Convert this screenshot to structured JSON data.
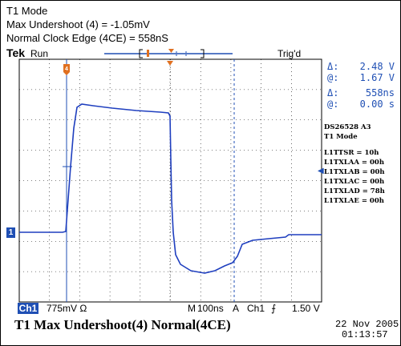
{
  "header": {
    "mode": "T1 Mode",
    "max_undershoot": "Max Undershoot (4) = -1.05mV",
    "clock_edge": "Normal Clock Edge (4CE) = 558nS"
  },
  "scope": {
    "brand": "Tek",
    "run_state": "Run",
    "trig_state": "Trig'd",
    "marker_label": "4",
    "channel_marker": "1"
  },
  "readouts": [
    {
      "label": "Δ:",
      "value": "2.48 V"
    },
    {
      "label": "@:",
      "value": "1.67 V"
    },
    {
      "label": "Δ:",
      "value": "558ns"
    },
    {
      "label": "@:",
      "value": "0.00 s"
    }
  ],
  "device": {
    "name": "DS26528  A3",
    "mode": "T1 Mode",
    "registers": [
      "L1TTSR = 10h",
      "L1TXLAA = 00h",
      "L1TXLAB = 00h",
      "L1TXLAC = 00h",
      "L1TXLAD = 78h",
      "L1TXLAE = 00h"
    ]
  },
  "status_bar": {
    "channel": "Ch1",
    "scale": "775mV Ω",
    "timebase_prefix": "M",
    "timebase": "100ns",
    "trigger_mode": "A",
    "trigger_channel": "Ch1",
    "trigger_edge": "⨍",
    "trigger_level": "1.50 V"
  },
  "caption": "T1 Max Undershoot(4)  Normal(4CE)",
  "timestamp": {
    "date": "22 Nov 2005",
    "time": "01:13:57"
  },
  "colors": {
    "trace": "#1f3fbf",
    "cursor": "#2040c0",
    "accent": "#1f4fb4"
  }
}
